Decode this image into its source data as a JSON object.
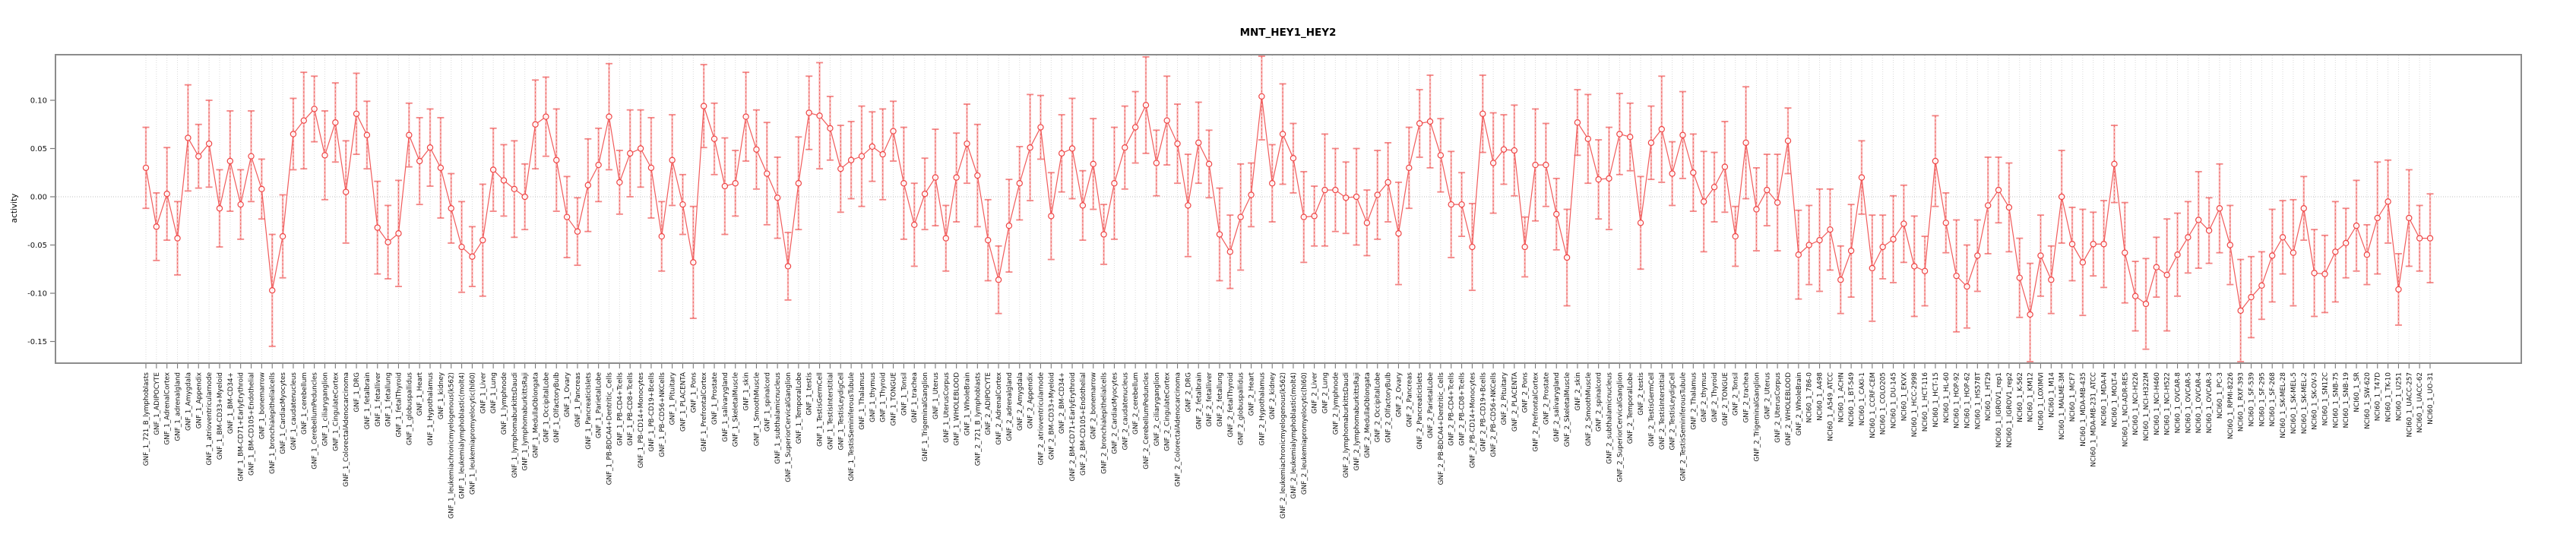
{
  "chart_data": {
    "type": "line",
    "subtype": "points-with-error-bars",
    "title": "MNT_HEY1_HEY2",
    "xlabel": "",
    "ylabel": "activity",
    "ylim": [
      -0.172,
      0.146
    ],
    "yticks": [
      0.1,
      0.05,
      0.0,
      -0.05,
      -0.1,
      -0.15
    ],
    "ytick_labels": [
      "0.10",
      "0.05",
      "0.00",
      "-0.05",
      "-0.10",
      "-0.15"
    ],
    "grid": "vertical dotted gridline per category; horizontal dotted line at 0.00",
    "legend": "none",
    "series_color": "#f15b5b",
    "point_color": "#ef4444",
    "errorbar_color": "#f58c8c",
    "border_color": "#8c8c8c",
    "categories": [
      "GNF_1_721_B_lymphoblasts",
      "GNF_1_ADIPOCYTE",
      "GNF_1_AdrenalCortex",
      "GNF_1_adrenalgland",
      "GNF_1_Amygdala",
      "GNF_1_Appendix",
      "GNF_1_atrioventricularnode",
      "GNF_1_BM-CD33+Myeloid",
      "GNF_1_BM-CD34+",
      "GNF_1_BM-CD71+EarlyErythroid",
      "GNF_1_BM-CD105+Endothelial",
      "GNF_1_bonemarrow",
      "GNF_1_bronchialepithelialcells",
      "GNF_1_CardiacMyocytes",
      "GNF_1_caudatenucleus",
      "GNF_1_cerebellum",
      "GNF_1_CerebellumPeduncles",
      "GNF_1_ciliaryganglion",
      "GNF_1_CingulateCortex",
      "GNF_1_ColorectalAdenocarcinoma",
      "GNF_1_DRG",
      "GNF_1_fetalbrain",
      "GNF_1_fetalliver",
      "GNF_1_fetallung",
      "GNF_1_fetalThyroid",
      "GNF_1_globuspallidus",
      "GNF_1_Heart",
      "GNF_1_Hypothalamus",
      "GNF_1_kidney",
      "GNF_1_leukemiachronicmyelogenous(k562)",
      "GNF_1_leukemialymphoblastic(molt4)",
      "GNF_1_leukemiapromyelocytic(hl60)",
      "GNF_1_Liver",
      "GNF_1_Lung",
      "GNF_1_lymphnode",
      "GNF_1_lymphomaburkittsDaudi",
      "GNF_1_lymphomaburkittsRaji",
      "GNF_1_MedullaOblongata",
      "GNF_1_OccipitalLobe",
      "GNF_1_OlfactoryBulb",
      "GNF_1_Ovary",
      "GNF_1_Pancreas",
      "GNF_1_PancreaticIslets",
      "GNF_1_ParietalLobe",
      "GNF_1_PB-BDCA4+Dentritic_Cells",
      "GNF_1_PB-CD4+Tcells",
      "GNF_1_PB-CD8+Tcells",
      "GNF_1_PB-CD14+Monocytes",
      "GNF_1_PB-CD19+Bcells",
      "GNF_1_PB-CD56+NKCells",
      "GNF_1_Pituitary",
      "GNF_1_PLACENTA",
      "GNF_1_Pons",
      "GNF_1_PrefrontalCortex",
      "GNF_1_Prostate",
      "GNF_1_salivarygland",
      "GNF_1_SkeletalMuscle",
      "GNF_1_skin",
      "GNF_1_SmoothMuscle",
      "GNF_1_spinalcord",
      "GNF_1_subthalamicnucleus",
      "GNF_1_SuperiorCervicalGanglion",
      "GNF_1_TemporalLobe",
      "GNF_1_testis",
      "GNF_1_TestisGermCell",
      "GNF_1_TestisInterstitial",
      "GNF_1_TestisLeydigCell",
      "GNF_1_TestisSeminiferousTubule",
      "GNF_1_Thalamus",
      "GNF_1_thymus",
      "GNF_1_Thyroid",
      "GNF_1_TONGUE",
      "GNF_1_Tonsil",
      "GNF_1_trachea",
      "GNF_1_TrigeminalGanglion",
      "GNF_1_Uterus",
      "GNF_1_UterusCorpus",
      "GNF_1_WHOLEBLOOD",
      "GNF_1_WholeBrain",
      "GNF_2_721_B_lymphoblasts",
      "GNF_2_ADIPOCYTE",
      "GNF_2_AdrenalCortex",
      "GNF_2_adrenalgland",
      "GNF_2_Amygdala",
      "GNF_2_Appendix",
      "GNF_2_atrioventricularnode",
      "GNF_2_BM-CD33+Myeloid",
      "GNF_2_BM-CD34+",
      "GNF_2_BM-CD71+EarlyErythroid",
      "GNF_2_BM-CD105+Endothelial",
      "GNF_2_bonemarrow",
      "GNF_2_bronchialepithelialcells",
      "GNF_2_CardiacMyocytes",
      "GNF_2_caudatenucleus",
      "GNF_2_cerebellum",
      "GNF_2_CerebellumPeduncles",
      "GNF_2_ciliaryganglion",
      "GNF_2_CingulateCortex",
      "GNF_2_ColorectalAdenocarcinoma",
      "GNF_2_DRG",
      "GNF_2_fetalbrain",
      "GNF_2_fetalliver",
      "GNF_2_fetallung",
      "GNF_2_fetalThyroid",
      "GNF_2_globuspallidus",
      "GNF_2_Heart",
      "GNF_2_Hypothalamus",
      "GNF_2_kidney",
      "GNF_2_leukemiachronicmyelogenous(k562)",
      "GNF_2_leukemialymphoblastic(molt4)",
      "GNF_2_leukemiapromyelocytic(hl60)",
      "GNF_2_Liver",
      "GNF_2_Lung",
      "GNF_2_lymphnode",
      "GNF_2_lymphomaburkittsDaudi",
      "GNF_2_lymphomaburkittsRaji",
      "GNF_2_MedullaOblongata",
      "GNF_2_OccipitalLobe",
      "GNF_2_OlfactoryBulb",
      "GNF_2_Ovary",
      "GNF_2_Pancreas",
      "GNF_2_PancreaticIslets",
      "GNF_2_ParietalLobe",
      "GNF_2_PB-BDCA4+Dentritic_Cells",
      "GNF_2_PB-CD4+Tcells",
      "GNF_2_PB-CD8+Tcells",
      "GNF_2_PB-CD14+Monocytes",
      "GNF_2_PB-CD19+Bcells",
      "GNF_2_PB-CD56+NKCells",
      "GNF_2_Pituitary",
      "GNF_2_PLACENTA",
      "GNF_2_Pons",
      "GNF_2_PrefrontalCortex",
      "GNF_2_Prostate",
      "GNF_2_salivarygland",
      "GNF_2_SkeletalMuscle",
      "GNF_2_skin",
      "GNF_2_SmoothMuscle",
      "GNF_2_spinalcord",
      "GNF_2_subthalamicnucleus",
      "GNF_2_SuperiorCervicalGanglion",
      "GNF_2_TemporalLobe",
      "GNF_2_testis",
      "GNF_2_TestisGermCell",
      "GNF_2_TestisInterstitial",
      "GNF_2_TestisLeydigCell",
      "GNF_2_TestisSeminiferousTubule",
      "GNF_2_Thalamus",
      "GNF_2_thymus",
      "GNF_2_Thyroid",
      "GNF_2_TONGUE",
      "GNF_2_Tonsil",
      "GNF_2_trachea",
      "GNF_2_TrigeminalGanglion",
      "GNF_2_Uterus",
      "GNF_2_UterusCorpus",
      "GNF_2_WHOLEBLOOD",
      "GNF_2_WholeBrain",
      "NCI60_1_786-0",
      "NCI60_1_A498",
      "NCI60_1_A549_ATCC",
      "NCI60_1_ACHN",
      "NCI60_1_BT-549",
      "NCI60_1_CAKI-1",
      "NCI60_1_CCRF-CEM",
      "NCI60_1_COLO205",
      "NCI60_1_DU-145",
      "NCI60_1_EKVX",
      "NCI60_1_HCC-2998",
      "NCI60_1_HCT-116",
      "NCI60_1_HCT-15",
      "NCI60_1_HL-60",
      "NCI60_1_HOP-92",
      "NCI60_1_HOP-62",
      "NCI60_1_HS578T",
      "NCI60_1_HT29",
      "NCI60_1_IGROV1_rep1",
      "NCI60_1_IGROV1_rep2",
      "NCI60_1_K-562",
      "NCI60_1_KM12",
      "NCI60_1_LOXIMVI",
      "NCI60_1_M14",
      "NCI60_1_MALME-3M",
      "NCI60_1_MCF7",
      "NCI60_1_MDA-MB-435",
      "NCI60_1_MDA-MB-231_ATCC",
      "NCI60_1_MDA-N",
      "NCI60_1_MOLT-4",
      "NCI60_1_NCI-ADR-RES",
      "NCI60_1_NCI-H226",
      "NCI60_1_NCI-H322M",
      "NCI60_1_NCI-H460",
      "NCI60_1_NCI-H522",
      "NCI60_1_OVCAR-8",
      "NCI60_1_OVCAR-5",
      "NCI60_1_OVCAR-4",
      "NCI60_1_OVCAR-3",
      "NCI60_1_PC-3",
      "NCI60_1_RPMI-8226",
      "NCI60_1_RXF-393",
      "NCI60_1_SF-539",
      "NCI60_1_SF-295",
      "NCI60_1_SF-268",
      "NCI60_1_SK-MEL-28",
      "NCI60_1_SK-MEL-5",
      "NCI60_1_SK-MEL-2",
      "NCI60_1_SK-OV-3",
      "NCI60_1_SN12C",
      "NCI60_1_SNB-75",
      "NCI60_1_SNB-19",
      "NCI60_1_SR",
      "NCI60_1_SW-620",
      "NCI60_1_T47D",
      "NCI60_1_TK-10",
      "NCI60_1_U251",
      "NCI60_1_UACC-257",
      "NCI60_1_UACC-62",
      "NCI60_1_UO-31"
    ],
    "values": [
      0.03,
      -0.031,
      0.003,
      -0.043,
      0.061,
      0.042,
      0.055,
      -0.012,
      0.037,
      -0.008,
      0.042,
      0.008,
      -0.097,
      -0.041,
      0.065,
      0.079,
      0.091,
      0.043,
      0.077,
      0.005,
      0.086,
      0.064,
      -0.032,
      -0.047,
      -0.038,
      0.064,
      0.037,
      0.051,
      0.03,
      -0.012,
      -0.052,
      -0.062,
      -0.045,
      0.028,
      0.017,
      0.008,
      0.0,
      0.075,
      0.083,
      0.038,
      -0.021,
      -0.036,
      0.012,
      0.033,
      0.083,
      0.015,
      0.045,
      0.05,
      0.03,
      -0.041,
      0.038,
      -0.008,
      -0.068,
      0.094,
      0.06,
      0.011,
      0.014,
      0.083,
      0.049,
      0.024,
      -0.001,
      -0.072,
      0.014,
      0.087,
      0.084,
      0.071,
      0.029,
      0.038,
      0.042,
      0.052,
      0.044,
      0.068,
      0.014,
      -0.029,
      0.003,
      0.02,
      -0.043,
      0.02,
      0.055,
      0.022,
      -0.045,
      -0.086,
      -0.03,
      0.014,
      0.051,
      0.072,
      -0.02,
      0.045,
      0.05,
      -0.009,
      0.034,
      -0.039,
      0.014,
      0.051,
      0.072,
      0.095,
      0.035,
      0.079,
      0.055,
      -0.009,
      0.056,
      0.034,
      -0.039,
      -0.057,
      -0.021,
      0.002,
      0.104,
      0.014,
      0.065,
      0.04,
      -0.021,
      -0.02,
      0.007,
      0.007,
      -0.001,
      0.0,
      -0.027,
      0.002,
      0.015,
      -0.038,
      0.03,
      0.076,
      0.078,
      0.043,
      -0.008,
      -0.008,
      -0.052,
      0.086,
      0.035,
      0.049,
      0.048,
      -0.052,
      0.033,
      0.033,
      -0.018,
      -0.063,
      0.077,
      0.06,
      0.018,
      0.019,
      0.065,
      0.062,
      -0.027,
      0.056,
      0.07,
      0.024,
      0.064,
      0.025,
      -0.005,
      0.01,
      0.031,
      -0.041,
      0.056,
      -0.013,
      0.007,
      -0.006,
      0.058,
      -0.06,
      -0.05,
      -0.045,
      -0.034,
      -0.086,
      -0.056,
      0.02,
      -0.074,
      -0.052,
      -0.044,
      -0.028,
      -0.072,
      -0.077,
      0.037,
      -0.027,
      -0.082,
      -0.093,
      -0.061,
      -0.009,
      0.007,
      -0.011,
      -0.084,
      -0.122,
      -0.061,
      -0.086,
      0.0,
      -0.049,
      -0.068,
      -0.049,
      -0.049,
      0.034,
      -0.058,
      -0.103,
      -0.111,
      -0.073,
      -0.081,
      -0.06,
      -0.042,
      -0.024,
      -0.035,
      -0.012,
      -0.05,
      -0.118,
      -0.104,
      -0.092,
      -0.061,
      -0.042,
      -0.058,
      -0.012,
      -0.079,
      -0.08,
      -0.057,
      -0.048,
      -0.03,
      -0.06,
      -0.022,
      -0.005,
      -0.096,
      -0.022,
      -0.043,
      -0.043
    ],
    "ci_half_width": [
      0.042,
      0.035,
      0.048,
      0.038,
      0.055,
      0.033,
      0.045,
      0.04,
      0.052,
      0.036,
      0.047,
      0.031,
      0.058,
      0.043,
      0.037,
      0.05,
      0.034,
      0.046,
      0.041,
      0.053,
      0.042,
      0.035,
      0.048,
      0.038,
      0.055,
      0.033,
      0.045,
      0.04,
      0.052,
      0.036,
      0.047,
      0.031,
      0.058,
      0.043,
      0.037,
      0.05,
      0.034,
      0.046,
      0.041,
      0.053,
      0.042,
      0.035,
      0.048,
      0.038,
      0.055,
      0.033,
      0.045,
      0.04,
      0.052,
      0.036,
      0.047,
      0.031,
      0.058,
      0.043,
      0.037,
      0.05,
      0.034,
      0.046,
      0.041,
      0.053,
      0.042,
      0.035,
      0.048,
      0.038,
      0.055,
      0.033,
      0.045,
      0.04,
      0.052,
      0.036,
      0.047,
      0.031,
      0.058,
      0.043,
      0.037,
      0.05,
      0.034,
      0.046,
      0.041,
      0.053,
      0.042,
      0.035,
      0.048,
      0.038,
      0.055,
      0.033,
      0.045,
      0.04,
      0.052,
      0.036,
      0.047,
      0.031,
      0.058,
      0.043,
      0.037,
      0.05,
      0.034,
      0.046,
      0.041,
      0.053,
      0.042,
      0.035,
      0.048,
      0.038,
      0.055,
      0.033,
      0.045,
      0.04,
      0.052,
      0.036,
      0.047,
      0.031,
      0.058,
      0.043,
      0.037,
      0.05,
      0.034,
      0.046,
      0.041,
      0.053,
      0.042,
      0.035,
      0.048,
      0.038,
      0.055,
      0.033,
      0.045,
      0.04,
      0.052,
      0.036,
      0.047,
      0.031,
      0.058,
      0.043,
      0.037,
      0.05,
      0.034,
      0.046,
      0.041,
      0.053,
      0.042,
      0.035,
      0.048,
      0.038,
      0.055,
      0.033,
      0.045,
      0.04,
      0.052,
      0.036,
      0.047,
      0.031,
      0.058,
      0.043,
      0.037,
      0.05,
      0.034,
      0.046,
      0.041,
      0.053,
      0.042,
      0.035,
      0.048,
      0.038,
      0.055,
      0.033,
      0.045,
      0.04,
      0.052,
      0.036,
      0.047,
      0.031,
      0.058,
      0.043,
      0.037,
      0.05,
      0.034,
      0.046,
      0.041,
      0.053,
      0.042,
      0.035,
      0.048,
      0.038,
      0.055,
      0.033,
      0.045,
      0.04,
      0.052,
      0.036,
      0.047,
      0.031,
      0.058,
      0.043,
      0.037,
      0.05,
      0.034,
      0.046,
      0.041,
      0.053,
      0.042,
      0.035,
      0.048,
      0.038,
      0.055,
      0.033,
      0.045,
      0.04,
      0.052,
      0.036,
      0.047,
      0.031,
      0.058,
      0.043,
      0.037,
      0.05,
      0.034,
      0.046
    ]
  }
}
